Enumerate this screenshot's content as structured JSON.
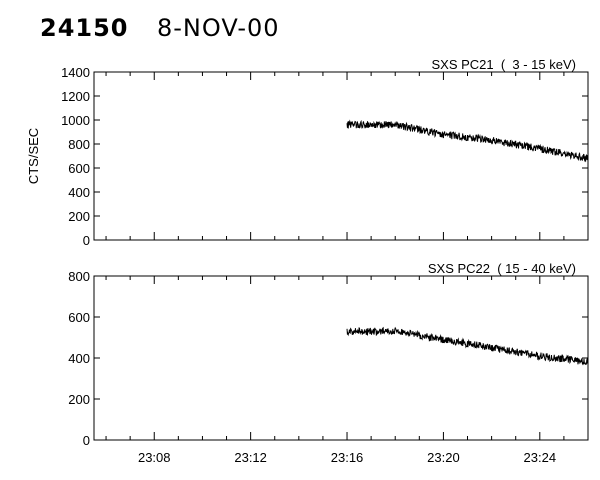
{
  "header": {
    "id": "24150",
    "date": "8-NOV-00"
  },
  "chart_data": [
    {
      "type": "line",
      "title": "SXS PC21  (  3 - 15 keV)",
      "xlabel": "",
      "ylabel": "CTS/SEC",
      "xlim": [
        "23:05:30",
        "23:26:00"
      ],
      "ylim": [
        0,
        1400
      ],
      "yticks": [
        0,
        200,
        400,
        600,
        800,
        1000,
        1200,
        1400
      ],
      "xticks": [
        "23:08",
        "23:12",
        "23:16",
        "23:20",
        "23:24"
      ],
      "grid": false,
      "series": [
        {
          "x": [
            "23:16:00",
            "23:18:00",
            "23:20:00",
            "23:22:00",
            "23:24:00",
            "23:26:00"
          ],
          "y": [
            960,
            960,
            880,
            830,
            760,
            680
          ]
        }
      ]
    },
    {
      "type": "line",
      "title": "SXS PC22  ( 15 - 40 keV)",
      "xlabel": "",
      "ylabel": "",
      "xlim": [
        "23:05:30",
        "23:26:00"
      ],
      "ylim": [
        0,
        800
      ],
      "yticks": [
        0,
        200,
        400,
        600,
        800
      ],
      "xticks": [
        "23:08",
        "23:12",
        "23:16",
        "23:20",
        "23:24"
      ],
      "grid": false,
      "series": [
        {
          "x": [
            "23:16:00",
            "23:18:00",
            "23:20:00",
            "23:22:00",
            "23:24:00",
            "23:26:00"
          ],
          "y": [
            530,
            530,
            490,
            450,
            410,
            380
          ]
        }
      ]
    }
  ]
}
